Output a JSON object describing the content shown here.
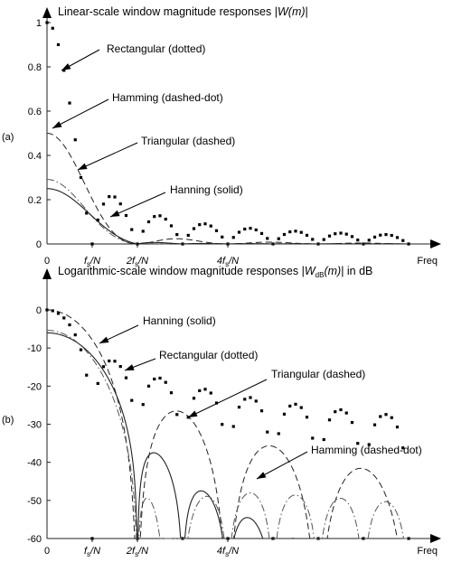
{
  "chart_data": [
    {
      "id": "a",
      "type": "line",
      "panel_label": "(a)",
      "title_prefix": "Linear-scale window magnitude responses |",
      "title_sym": "W",
      "title_arg": "(m)",
      "title_suffix": "|",
      "xlabel": "Freq",
      "xlim": [
        0,
        8
      ],
      "ylim": [
        0,
        1
      ],
      "yticks": [
        0,
        0.2,
        0.4,
        0.6,
        0.8,
        1
      ],
      "ytick_labels": [
        "0",
        "0.2",
        "0.4",
        "0.6",
        "0.8",
        "1"
      ],
      "xticks": [
        {
          "x": 0,
          "pre": "0",
          "sub": "",
          "post": ""
        },
        {
          "x": 1,
          "pre": "f",
          "sub": "s",
          "post": "/N"
        },
        {
          "x": 2,
          "pre": "2f",
          "sub": "s",
          "post": "/N"
        },
        {
          "x": 4,
          "pre": "4f",
          "sub": "s",
          "post": "/N"
        }
      ],
      "series": [
        {
          "name": "Rectangular",
          "style": "dotted",
          "label": "Rectangular (dotted)"
        },
        {
          "name": "Hamming",
          "style": "dashdot",
          "label": "Hamming (dashed-dot)"
        },
        {
          "name": "Triangular",
          "style": "dashed",
          "label": "Triangular (dashed)"
        },
        {
          "name": "Hanning",
          "style": "solid",
          "label": "Hanning (solid)"
        }
      ]
    },
    {
      "id": "b",
      "type": "line",
      "panel_label": "(b)",
      "title_prefix": "Logarithmic-scale window magnitude responses |",
      "title_sym": "W",
      "title_sub": "dB",
      "title_arg": "(m)",
      "title_suffix": "| in dB",
      "xlabel": "Freq",
      "xlim": [
        0,
        8
      ],
      "ylim": [
        -60,
        0
      ],
      "yticks": [
        0,
        -10,
        -20,
        -30,
        -40,
        -50,
        -60
      ],
      "ytick_labels": [
        "0",
        "-10",
        "-20",
        "-30",
        "-40",
        "-50",
        "-60"
      ],
      "xticks": [
        {
          "x": 0,
          "pre": "0",
          "sub": "",
          "post": ""
        },
        {
          "x": 1,
          "pre": "f",
          "sub": "s",
          "post": "/N"
        },
        {
          "x": 2,
          "pre": "2f",
          "sub": "s",
          "post": "/N"
        },
        {
          "x": 4,
          "pre": "4f",
          "sub": "s",
          "post": "/N"
        }
      ],
      "series": [
        {
          "name": "Hanning",
          "style": "solid",
          "label": "Hanning (solid)"
        },
        {
          "name": "Rectangular",
          "style": "dotted",
          "label": "Rectangular (dotted)"
        },
        {
          "name": "Triangular",
          "style": "dashed",
          "label": "Triangular (dashed)"
        },
        {
          "name": "Hamming",
          "style": "dashdot",
          "label": "Hamming (dashed-dot)"
        }
      ]
    }
  ]
}
